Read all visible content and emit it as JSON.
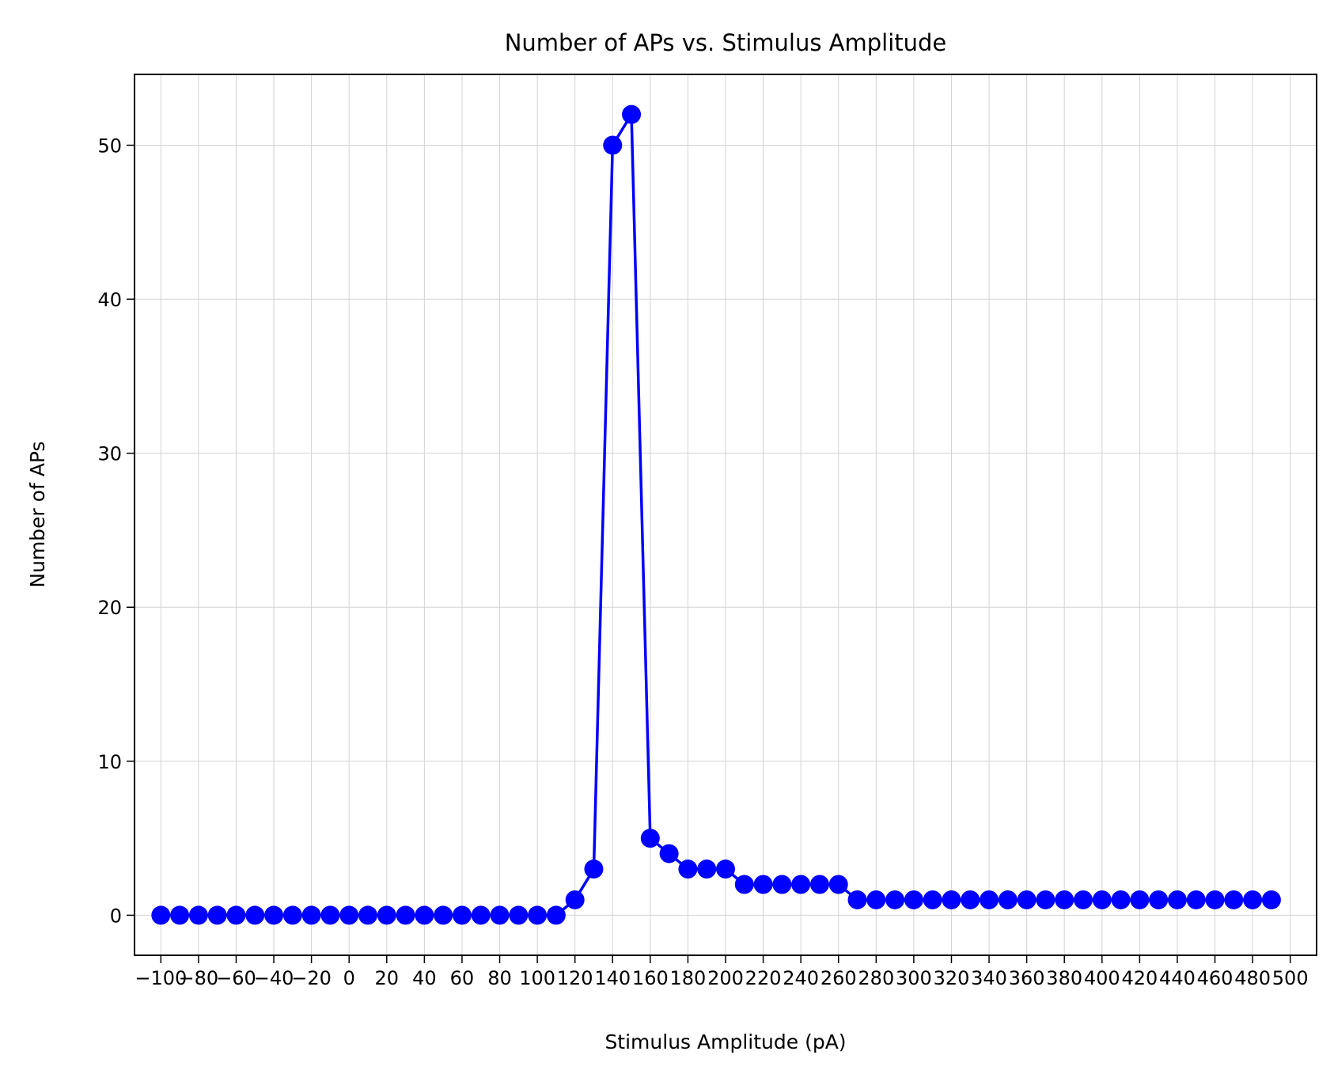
{
  "chart_data": {
    "type": "line",
    "title": "Number of APs vs. Stimulus Amplitude",
    "xlabel": "Stimulus Amplitude (pA)",
    "ylabel": "Number of APs",
    "xlim": [
      -114,
      514
    ],
    "ylim": [
      -2.6,
      54.6
    ],
    "grid": true,
    "line_color": "#0000ff",
    "marker": "circle",
    "x_ticks": [
      -100,
      -80,
      -60,
      -40,
      -20,
      0,
      20,
      40,
      60,
      80,
      100,
      120,
      140,
      160,
      180,
      200,
      220,
      240,
      260,
      280,
      300,
      320,
      340,
      360,
      380,
      400,
      420,
      440,
      460,
      480,
      500
    ],
    "x_tick_labels": [
      "−100",
      "−80",
      "−60",
      "−40",
      "−20",
      "0",
      "20",
      "40",
      "60",
      "80",
      "100",
      "120",
      "140",
      "160",
      "180",
      "200",
      "220",
      "240",
      "260",
      "280",
      "300",
      "320",
      "340",
      "360",
      "380",
      "400",
      "420",
      "440",
      "460",
      "480",
      "500"
    ],
    "y_ticks": [
      0,
      10,
      20,
      30,
      40,
      50
    ],
    "y_tick_labels": [
      "0",
      "10",
      "20",
      "30",
      "40",
      "50"
    ],
    "series": [
      {
        "x": [
          -100,
          -90,
          -80,
          -70,
          -60,
          -50,
          -40,
          -30,
          -20,
          -10,
          0,
          10,
          20,
          30,
          40,
          50,
          60,
          70,
          80,
          90,
          100,
          110,
          120,
          130,
          140,
          150,
          160,
          170,
          180,
          190,
          200,
          210,
          220,
          230,
          240,
          250,
          260,
          270,
          280,
          290,
          300,
          310,
          320,
          330,
          340,
          350,
          360,
          370,
          380,
          390,
          400,
          410,
          420,
          430,
          440,
          450,
          460,
          470,
          480,
          490
        ],
        "y": [
          0,
          0,
          0,
          0,
          0,
          0,
          0,
          0,
          0,
          0,
          0,
          0,
          0,
          0,
          0,
          0,
          0,
          0,
          0,
          0,
          0,
          0,
          1,
          3,
          50,
          52,
          5,
          4,
          3,
          3,
          3,
          2,
          2,
          2,
          2,
          2,
          2,
          1,
          1,
          1,
          1,
          1,
          1,
          1,
          1,
          1,
          1,
          1,
          1,
          1,
          1,
          1,
          1,
          1,
          1,
          1,
          1,
          1,
          1,
          1
        ]
      }
    ]
  }
}
